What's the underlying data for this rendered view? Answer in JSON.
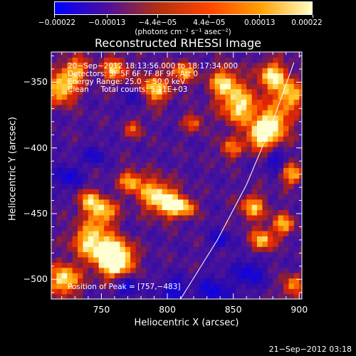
{
  "chart_data": {
    "type": "heatmap",
    "title": "Reconstructed RHESSI Image",
    "xlabel": "Heliocentric X (arcsec)",
    "ylabel": "Heliocentric Y (arcsec)",
    "xlim": [
      712,
      902
    ],
    "ylim": [
      -515,
      -327
    ],
    "x_ticks": [
      750,
      800,
      850,
      900
    ],
    "x_tick_labels": [
      "750",
      "800",
      "850",
      "900"
    ],
    "y_ticks": [
      -350,
      -400,
      -450,
      -500
    ],
    "y_tick_labels": [
      "−350",
      "−400",
      "−450",
      "−500"
    ],
    "colorbar": {
      "range": [
        -0.00022,
        0.00022
      ],
      "tick_values": [
        -0.00022,
        -0.00013,
        -4.4e-05,
        4.4e-05,
        0.00013,
        0.00022
      ],
      "tick_labels": [
        "−0.00022",
        "−0.00013",
        "−4.4e−05",
        "4.4e−05",
        "0.00013",
        "0.00022"
      ],
      "units": "(photons cm⁻² s⁻¹ asec⁻²)",
      "colors": [
        "#0000ff",
        "#4a0fa0",
        "#b03010",
        "#ff4400",
        "#ffa000",
        "#ffffc8"
      ]
    },
    "annotations": [
      "20−Sep−2012 18:13:56.000 to 18:17:34.000",
      "Detectors: 3F 5F 6F 7F 8F 9F, Att 0",
      "Energy Range: 25.0 − 50.0 keV",
      "Clean     Total counts: 5.11E+03",
      "Position of Peak = [757,−483]"
    ],
    "peak": {
      "x": 757,
      "y": -483
    },
    "limb_curve": [
      [
        810,
        -515
      ],
      [
        838,
        -470
      ],
      [
        860,
        -428
      ],
      [
        878,
        -385
      ],
      [
        896,
        -335
      ]
    ],
    "grid": false
  },
  "footer": {
    "date_stamp": "21−Sep−2012 03:18"
  }
}
